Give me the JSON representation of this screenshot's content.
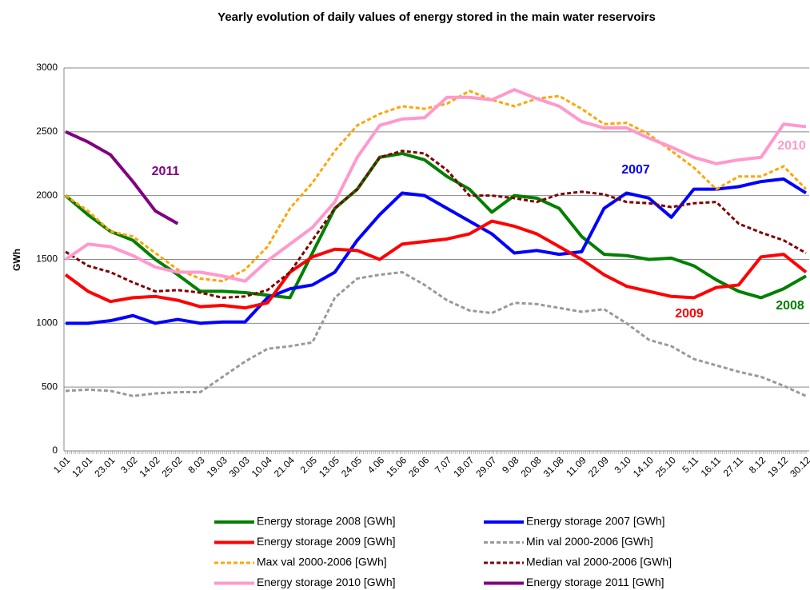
{
  "chart_data": {
    "type": "line",
    "title": "Yearly evolution of daily values of energy stored in the main water reservoirs",
    "y_label": "GWh",
    "categories": [
      "1.01",
      "12.01",
      "23.01",
      "3.02",
      "14.02",
      "25.02",
      "8.03",
      "19.03",
      "30.03",
      "10.04",
      "21.04",
      "2.05",
      "13.05",
      "24.05",
      "4.06",
      "15.06",
      "26.06",
      "7.07",
      "18.07",
      "29.07",
      "9.08",
      "20.08",
      "31.08",
      "11.09",
      "22.09",
      "3.10",
      "14.10",
      "25.10",
      "5.11",
      "16.11",
      "27.11",
      "8.12",
      "19.12",
      "30.12"
    ],
    "ylim": [
      0,
      3000
    ],
    "yticks": [
      0,
      500,
      1000,
      1500,
      2000,
      2500,
      3000
    ],
    "grid": true,
    "series": [
      {
        "name": "Energy storage 2008 [GWh]",
        "color": "#008000",
        "dashed": false,
        "values": [
          2000,
          1850,
          1720,
          1650,
          1500,
          1380,
          1250,
          1250,
          1240,
          1220,
          1200,
          1550,
          1900,
          2050,
          2300,
          2330,
          2280,
          2150,
          2050,
          1870,
          2000,
          1980,
          1900,
          1680,
          1540,
          1530,
          1500,
          1510,
          1450,
          1340,
          1250,
          1200,
          1270,
          1370
        ]
      },
      {
        "name": "Energy storage 2007 [GWh]",
        "color": "#0000ff",
        "dashed": false,
        "values": [
          1000,
          1000,
          1020,
          1060,
          1000,
          1030,
          1000,
          1010,
          1010,
          1200,
          1270,
          1300,
          1400,
          1650,
          1850,
          2020,
          2000,
          1900,
          1800,
          1700,
          1550,
          1570,
          1540,
          1560,
          1900,
          2020,
          1980,
          1830,
          2050,
          2050,
          2070,
          2110,
          2130,
          2020
        ]
      },
      {
        "name": "Energy storage 2009 [GWh]",
        "color": "#ff0000",
        "dashed": false,
        "values": [
          1380,
          1250,
          1170,
          1200,
          1210,
          1180,
          1130,
          1140,
          1120,
          1160,
          1400,
          1520,
          1580,
          1570,
          1500,
          1620,
          1640,
          1660,
          1700,
          1800,
          1760,
          1700,
          1600,
          1500,
          1380,
          1290,
          1250,
          1210,
          1200,
          1280,
          1300,
          1520,
          1540,
          1400
        ]
      },
      {
        "name": "Min val 2000-2006 [GWh]",
        "color": "#999999",
        "dashed": true,
        "values": [
          470,
          480,
          470,
          430,
          450,
          460,
          460,
          580,
          700,
          800,
          820,
          850,
          1200,
          1350,
          1380,
          1400,
          1300,
          1180,
          1100,
          1080,
          1160,
          1150,
          1120,
          1090,
          1110,
          1000,
          870,
          820,
          720,
          670,
          620,
          580,
          510,
          430
        ]
      },
      {
        "name": "Max val 2000-2006 [GWh]",
        "color": "#ffa500",
        "dashed": true,
        "values": [
          2000,
          1880,
          1720,
          1680,
          1550,
          1420,
          1350,
          1330,
          1420,
          1600,
          1900,
          2100,
          2350,
          2550,
          2640,
          2700,
          2680,
          2720,
          2820,
          2750,
          2700,
          2760,
          2780,
          2680,
          2560,
          2570,
          2480,
          2350,
          2220,
          2050,
          2150,
          2150,
          2230,
          2050
        ]
      },
      {
        "name": "Median val 2000-2006 [GWh]",
        "color": "#800000",
        "dashed": true,
        "values": [
          1560,
          1450,
          1400,
          1320,
          1250,
          1260,
          1240,
          1200,
          1210,
          1260,
          1400,
          1650,
          1900,
          2050,
          2300,
          2350,
          2330,
          2200,
          2000,
          2000,
          1980,
          1950,
          2010,
          2030,
          2010,
          1950,
          1940,
          1910,
          1940,
          1950,
          1780,
          1710,
          1650,
          1550
        ]
      },
      {
        "name": "Energy storage 2010 [GWh]",
        "color": "#ff99cc",
        "dashed": false,
        "values": [
          1500,
          1620,
          1600,
          1530,
          1440,
          1400,
          1400,
          1370,
          1330,
          1490,
          1620,
          1750,
          1950,
          2300,
          2550,
          2600,
          2610,
          2770,
          2770,
          2750,
          2830,
          2760,
          2700,
          2580,
          2530,
          2530,
          2450,
          2380,
          2300,
          2250,
          2280,
          2300,
          2560,
          2540
        ]
      },
      {
        "name": "Energy storage 2011 [GWh]",
        "color": "#800080",
        "dashed": false,
        "values": [
          2500,
          2420,
          2320,
          2110,
          1880,
          1780,
          null,
          null,
          null,
          null,
          null,
          null,
          null,
          null,
          null,
          null,
          null,
          null,
          null,
          null,
          null,
          null,
          null,
          null,
          null,
          null,
          null,
          null,
          null,
          null,
          null,
          null,
          null,
          null
        ]
      }
    ],
    "annotations": [
      {
        "text": "2011",
        "color": "#800080"
      },
      {
        "text": "2007",
        "color": "#0000ff"
      },
      {
        "text": "2010",
        "color": "#ff99cc"
      },
      {
        "text": "2009",
        "color": "#ff0000"
      },
      {
        "text": "2008",
        "color": "#008000"
      }
    ]
  }
}
